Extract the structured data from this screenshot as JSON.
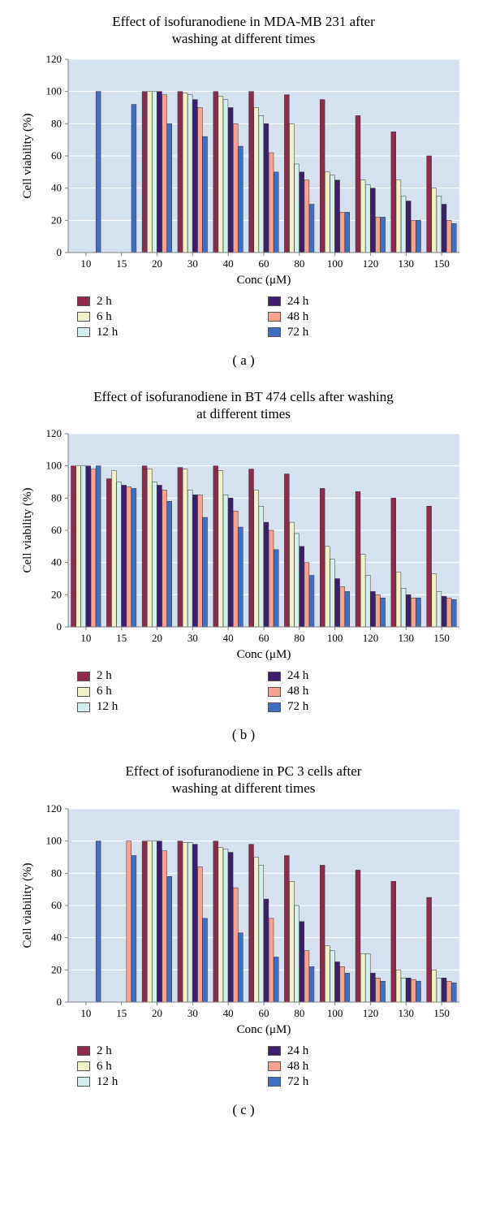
{
  "global": {
    "x_label": "Conc (μM)",
    "y_label": "Cell viability (%)",
    "categories": [
      "10",
      "15",
      "20",
      "30",
      "40",
      "60",
      "80",
      "100",
      "120",
      "130",
      "150"
    ],
    "y_ticks": [
      0,
      20,
      40,
      60,
      80,
      100,
      120
    ],
    "ylim": [
      0,
      120
    ],
    "plot_bg": "#d6e1ef",
    "grid_color": "#ffffff",
    "axis_color": "#808080",
    "tick_font_size": 13,
    "title_font_size": 17,
    "label_font_size": 15,
    "series_meta": [
      {
        "key": "2h",
        "label": "2 h",
        "color": "#8f2a4a"
      },
      {
        "key": "6h",
        "label": "6 h",
        "color": "#eff2c6"
      },
      {
        "key": "12h",
        "label": "12 h",
        "color": "#d2eeee"
      },
      {
        "key": "24h",
        "label": "24 h",
        "color": "#3d1e6b"
      },
      {
        "key": "48h",
        "label": "48 h",
        "color": "#f6a28e"
      },
      {
        "key": "72h",
        "label": "72 h",
        "color": "#3f6fc3"
      }
    ],
    "legend_order_col1": [
      0,
      1,
      2
    ],
    "legend_order_col2": [
      3,
      4,
      5
    ]
  },
  "panels": [
    {
      "id": "a",
      "title_line1": "Effect of isofuranodiene in MDA-MB 231 after",
      "title_line2": "washing at different times",
      "label": "( a )",
      "series": {
        "2h": [
          null,
          null,
          100,
          100,
          100,
          100,
          98,
          95,
          85,
          75,
          60
        ],
        "6h": [
          null,
          null,
          100,
          99,
          97,
          90,
          80,
          50,
          45,
          45,
          40
        ],
        "12h": [
          null,
          null,
          100,
          98,
          95,
          85,
          55,
          48,
          42,
          35,
          35
        ],
        "24h": [
          null,
          null,
          100,
          95,
          90,
          80,
          50,
          45,
          40,
          32,
          30
        ],
        "48h": [
          null,
          null,
          98,
          90,
          80,
          62,
          45,
          25,
          22,
          20,
          20
        ],
        "72h": [
          100,
          92,
          80,
          72,
          66,
          50,
          30,
          25,
          22,
          20,
          18
        ]
      }
    },
    {
      "id": "b",
      "title_line1": "Effect of isofuranodiene in BT 474 cells after washing",
      "title_line2": "at different times",
      "label": "( b )",
      "series": {
        "2h": [
          100,
          92,
          100,
          99,
          100,
          98,
          95,
          86,
          84,
          80,
          75
        ],
        "6h": [
          100,
          97,
          98,
          98,
          97,
          85,
          65,
          50,
          45,
          34,
          33
        ],
        "12h": [
          100,
          90,
          90,
          85,
          82,
          75,
          58,
          42,
          32,
          24,
          22
        ],
        "24h": [
          100,
          88,
          88,
          82,
          80,
          65,
          50,
          30,
          22,
          20,
          19
        ],
        "48h": [
          98,
          87,
          85,
          82,
          72,
          60,
          40,
          25,
          20,
          18,
          18
        ],
        "72h": [
          100,
          86,
          78,
          68,
          62,
          48,
          32,
          22,
          18,
          18,
          17
        ]
      }
    },
    {
      "id": "c",
      "title_line1": "Effect of isofuranodiene in PC 3 cells after",
      "title_line2": "washing at different times",
      "label": "( c )",
      "series": {
        "2h": [
          null,
          null,
          100,
          100,
          100,
          98,
          91,
          85,
          82,
          75,
          65
        ],
        "6h": [
          null,
          null,
          100,
          99,
          96,
          90,
          75,
          35,
          30,
          20,
          20
        ],
        "12h": [
          null,
          null,
          100,
          99,
          95,
          85,
          60,
          32,
          30,
          15,
          15
        ],
        "24h": [
          null,
          null,
          100,
          98,
          93,
          64,
          50,
          25,
          18,
          15,
          15
        ],
        "48h": [
          null,
          100,
          94,
          84,
          71,
          52,
          32,
          22,
          15,
          14,
          13
        ],
        "72h": [
          100,
          91,
          78,
          52,
          43,
          28,
          22,
          18,
          13,
          13,
          12
        ]
      }
    }
  ]
}
